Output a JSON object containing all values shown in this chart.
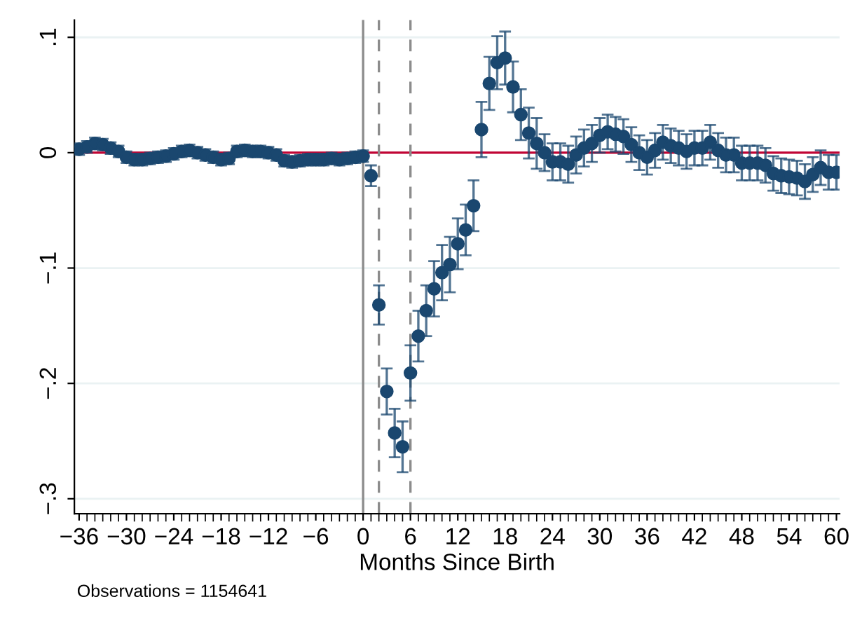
{
  "chart_data": {
    "type": "scatter",
    "xlabel": "Months Since Birth",
    "x": [
      -36,
      -35,
      -34,
      -33,
      -32,
      -31,
      -30,
      -29,
      -28,
      -27,
      -26,
      -25,
      -24,
      -23,
      -22,
      -21,
      -20,
      -19,
      -18,
      -17,
      -16,
      -15,
      -14,
      -13,
      -12,
      -11,
      -10,
      -9,
      -8,
      -7,
      -6,
      -5,
      -4,
      -3,
      -2,
      -1,
      0,
      1,
      2,
      3,
      4,
      5,
      6,
      7,
      8,
      9,
      10,
      11,
      12,
      13,
      14,
      15,
      16,
      17,
      18,
      19,
      20,
      21,
      22,
      23,
      24,
      25,
      26,
      27,
      28,
      29,
      30,
      31,
      32,
      33,
      34,
      35,
      36,
      37,
      38,
      39,
      40,
      41,
      42,
      43,
      44,
      45,
      46,
      47,
      48,
      49,
      50,
      51,
      52,
      53,
      54,
      55,
      56,
      57,
      58,
      59,
      60
    ],
    "series": [
      {
        "color": "#1a476f",
        "values": [
          0.003,
          0.005,
          0.008,
          0.007,
          0.004,
          0.001,
          -0.004,
          -0.006,
          -0.006,
          -0.005,
          -0.004,
          -0.003,
          -0.001,
          0.001,
          0.002,
          0.0,
          -0.002,
          -0.004,
          -0.006,
          -0.005,
          0.001,
          0.002,
          0.001,
          0.001,
          0.0,
          -0.002,
          -0.007,
          -0.008,
          -0.007,
          -0.006,
          -0.006,
          -0.006,
          -0.005,
          -0.006,
          -0.005,
          -0.004,
          -0.003,
          -0.02,
          -0.132,
          -0.207,
          -0.243,
          -0.255,
          -0.191,
          -0.159,
          -0.137,
          -0.118,
          -0.104,
          -0.097,
          -0.079,
          -0.067,
          -0.046,
          0.02,
          0.06,
          0.078,
          0.082,
          0.057,
          0.033,
          0.017,
          0.008,
          0.0,
          -0.008,
          -0.008,
          -0.01,
          -0.002,
          0.004,
          0.008,
          0.015,
          0.018,
          0.016,
          0.014,
          0.007,
          0.0,
          -0.004,
          0.002,
          0.009,
          0.006,
          0.004,
          0.001,
          0.004,
          0.004,
          0.009,
          0.002,
          -0.002,
          -0.002,
          -0.009,
          -0.009,
          -0.009,
          -0.011,
          -0.018,
          -0.02,
          -0.021,
          -0.022,
          -0.025,
          -0.019,
          -0.013,
          -0.017,
          -0.017
        ],
        "errors": [
          0.005,
          0.005,
          0.005,
          0.005,
          0.005,
          0.005,
          0.005,
          0.005,
          0.005,
          0.005,
          0.005,
          0.005,
          0.005,
          0.005,
          0.005,
          0.005,
          0.005,
          0.005,
          0.005,
          0.005,
          0.005,
          0.005,
          0.005,
          0.005,
          0.005,
          0.005,
          0.005,
          0.005,
          0.005,
          0.005,
          0.005,
          0.005,
          0.005,
          0.005,
          0.005,
          0.005,
          0.005,
          0.009,
          0.017,
          0.02,
          0.021,
          0.022,
          0.024,
          0.022,
          0.022,
          0.024,
          0.024,
          0.024,
          0.022,
          0.022,
          0.022,
          0.024,
          0.023,
          0.023,
          0.023,
          0.022,
          0.022,
          0.022,
          0.022,
          0.016,
          0.016,
          0.016,
          0.016,
          0.016,
          0.016,
          0.016,
          0.015,
          0.015,
          0.015,
          0.015,
          0.015,
          0.015,
          0.015,
          0.015,
          0.015,
          0.015,
          0.015,
          0.015,
          0.015,
          0.015,
          0.015,
          0.015,
          0.015,
          0.015,
          0.015,
          0.015,
          0.015,
          0.015,
          0.015,
          0.015,
          0.015,
          0.015,
          0.015,
          0.015,
          0.015,
          0.015,
          0.015
        ]
      }
    ],
    "marker": "circle",
    "grid": "y",
    "xlim": [
      -36.6,
      60.4
    ],
    "xticks": [
      {
        "value": -36,
        "label": "−36"
      },
      {
        "value": -30,
        "label": "−30"
      },
      {
        "value": -24,
        "label": "−24"
      },
      {
        "value": -18,
        "label": "−18"
      },
      {
        "value": -12,
        "label": "−12"
      },
      {
        "value": -6,
        "label": "−6"
      },
      0,
      6,
      12,
      18,
      24,
      30,
      36,
      42,
      48,
      54,
      60
    ],
    "ylim": [
      -0.313,
      0.115
    ],
    "yticks": [
      {
        "value": 0.1,
        "label": ".1"
      },
      0,
      {
        "value": -0.1,
        "label": "−.1"
      },
      {
        "value": -0.2,
        "label": "−.2"
      },
      {
        "value": -0.3,
        "label": "−.3"
      }
    ],
    "ref_lines": [
      {
        "axis": "y",
        "value": 0,
        "color": "#c10534",
        "line_style": "solid"
      },
      {
        "axis": "x",
        "value": 0,
        "color": "#8c8c8c",
        "line_style": "solid"
      },
      {
        "axis": "x",
        "value": 2,
        "color": "#8c8c8c",
        "line_style": "dashed"
      },
      {
        "axis": "x",
        "value": 6,
        "color": "#8c8c8c",
        "line_style": "dashed"
      }
    ],
    "annotations": [
      "Observations = 1154641"
    ]
  }
}
